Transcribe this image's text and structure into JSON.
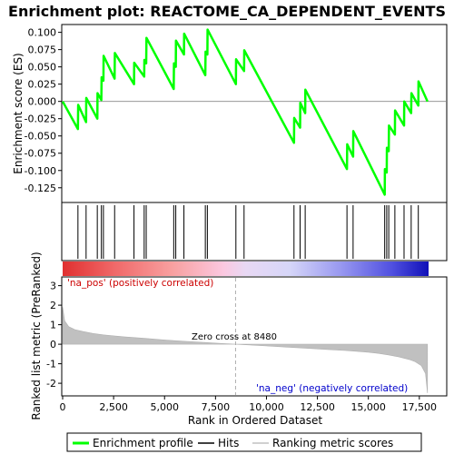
{
  "chart_data": {
    "type": "line",
    "title": "Enrichment plot: REACTOME_CA_DEPENDENT_EVENTS",
    "es_panel": {
      "ylabel": "Enrichment score (ES)",
      "ylim": [
        -0.145,
        0.11
      ],
      "yticks": [
        -0.125,
        -0.1,
        -0.075,
        -0.05,
        -0.025,
        0.0,
        0.025,
        0.05,
        0.075,
        0.1
      ],
      "ytick_labels": [
        "-0.125",
        "-0.100",
        "-0.075",
        "-0.050",
        "-0.025",
        "0.000",
        "0.025",
        "0.050",
        "0.075",
        "0.100"
      ],
      "series": [
        {
          "name": "Enrichment profile",
          "color": "#00ff00",
          "x": [
            0,
            750,
            760,
            1150,
            1160,
            1700,
            1710,
            1900,
            1910,
            2000,
            2010,
            2550,
            2560,
            3500,
            3510,
            4000,
            4010,
            4100,
            4110,
            5450,
            5460,
            5550,
            5560,
            5950,
            5960,
            7000,
            7010,
            7100,
            7110,
            8500,
            8510,
            8900,
            8910,
            11350,
            11360,
            11650,
            11660,
            11900,
            11910,
            13950,
            13960,
            14250,
            14260,
            15800,
            15810,
            15900,
            15910,
            16000,
            16010,
            16300,
            16310,
            16750,
            16760,
            17100,
            17110,
            17450,
            17460,
            17900
          ],
          "y": [
            0.0,
            -0.04,
            -0.005,
            -0.03,
            0.005,
            -0.025,
            0.012,
            0.002,
            0.035,
            0.03,
            0.066,
            0.033,
            0.07,
            0.025,
            0.056,
            0.036,
            0.06,
            0.055,
            0.092,
            0.018,
            0.055,
            0.05,
            0.088,
            0.068,
            0.098,
            0.038,
            0.072,
            0.068,
            0.104,
            0.025,
            0.061,
            0.044,
            0.074,
            -0.06,
            -0.024,
            -0.038,
            -0.002,
            -0.017,
            0.017,
            -0.098,
            -0.062,
            -0.08,
            -0.043,
            -0.135,
            -0.098,
            -0.103,
            -0.067,
            -0.072,
            -0.035,
            -0.048,
            -0.013,
            -0.035,
            0.0,
            -0.017,
            0.012,
            -0.006,
            0.029,
            0.0
          ]
        }
      ]
    },
    "hits": [
      750,
      1150,
      1700,
      1900,
      2000,
      2550,
      3500,
      4000,
      4100,
      5450,
      5550,
      5950,
      7000,
      7100,
      8500,
      8900,
      11350,
      11650,
      11900,
      13950,
      14250,
      15800,
      15900,
      16000,
      16300,
      16750,
      17100,
      17450
    ],
    "metric_panel": {
      "ylabel": "Ranked list metric (PreRanked)",
      "xlabel": "Rank in Ordered Dataset",
      "ylim": [
        -2.6,
        3.4
      ],
      "yticks": [
        -2,
        -1,
        0,
        1,
        2,
        3
      ],
      "ytick_labels": [
        "-2",
        "-1",
        "0",
        "1",
        "2",
        "3"
      ],
      "xlim": [
        0,
        18800
      ],
      "xticks": [
        0,
        2500,
        5000,
        7500,
        10000,
        12500,
        15000,
        17500
      ],
      "xtick_labels": [
        "0",
        "2,500",
        "5,000",
        "7,500",
        "10,000",
        "12,500",
        "15,000",
        "17,500"
      ],
      "metric_curve": {
        "x": [
          0,
          100,
          300,
          600,
          1000,
          1500,
          2000,
          3000,
          4000,
          5000,
          6000,
          7000,
          8000,
          8480,
          9000,
          10000,
          11000,
          12000,
          13000,
          14000,
          15000,
          15500,
          16000,
          16500,
          17000,
          17300,
          17600,
          17800,
          17900
        ],
        "y": [
          1.9,
          1.2,
          0.9,
          0.75,
          0.65,
          0.55,
          0.48,
          0.38,
          0.3,
          0.22,
          0.15,
          0.09,
          0.03,
          0.0,
          -0.03,
          -0.09,
          -0.15,
          -0.21,
          -0.27,
          -0.33,
          -0.41,
          -0.47,
          -0.55,
          -0.65,
          -0.78,
          -0.9,
          -1.1,
          -1.5,
          -2.5
        ]
      },
      "zero_cross_label": "Zero cross at 8480",
      "zero_cross": 8480,
      "pos_label": "'na_pos' (positively correlated)",
      "neg_label": "'na_neg' (negatively correlated)",
      "pos_color": "#cc0000",
      "neg_color": "#0000cc"
    },
    "total_ranks": 17900,
    "legend": {
      "placement": "bottom",
      "items": [
        {
          "label": "Enrichment profile",
          "color": "#00ff00"
        },
        {
          "label": "Hits",
          "color": "#000000"
        },
        {
          "label": "Ranking metric scores",
          "color": "#c0c0c0"
        }
      ]
    }
  }
}
